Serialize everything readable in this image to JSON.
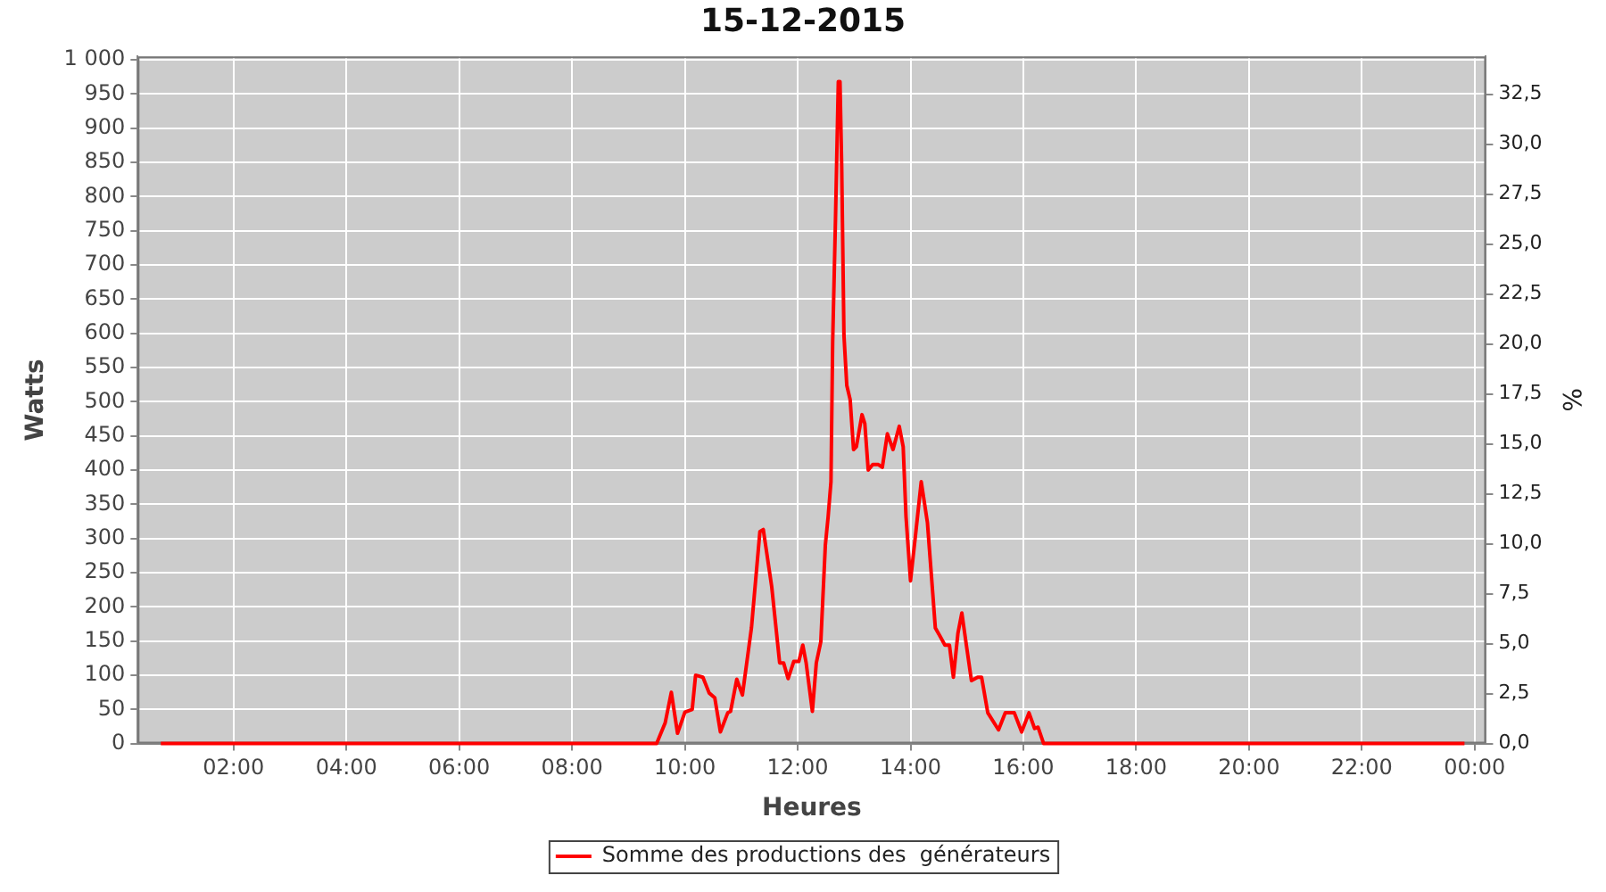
{
  "chart_data": {
    "type": "line",
    "title": "15-12-2015",
    "xlabel": "Heures",
    "ylabel": "Watts",
    "y2label": "%",
    "x": [
      0.71,
      9.5,
      9.65,
      9.76,
      9.87,
      10.0,
      10.13,
      10.19,
      10.32,
      10.43,
      10.53,
      10.63,
      10.76,
      10.81,
      10.92,
      11.02,
      11.18,
      11.33,
      11.39,
      11.54,
      11.68,
      11.75,
      11.83,
      11.93,
      12.02,
      12.09,
      12.15,
      12.26,
      12.33,
      12.41,
      12.49,
      12.54,
      12.59,
      12.62,
      12.67,
      12.72,
      12.75,
      12.78,
      12.82,
      12.87,
      12.93,
      12.99,
      13.04,
      13.14,
      13.19,
      13.25,
      13.33,
      13.43,
      13.5,
      13.59,
      13.69,
      13.8,
      13.87,
      13.92,
      14.0,
      14.09,
      14.19,
      14.3,
      14.37,
      14.44,
      14.53,
      14.61,
      14.69,
      14.76,
      14.84,
      14.91,
      14.99,
      15.08,
      15.19,
      15.26,
      15.37,
      15.56,
      15.68,
      15.84,
      15.97,
      16.1,
      16.2,
      16.26,
      16.36,
      23.82
    ],
    "series": [
      {
        "name": "Somme des productions des  générateurs",
        "color": "#ff0000",
        "values": [
          0,
          0,
          30,
          75,
          15,
          46,
          50,
          100,
          97,
          74,
          67,
          17,
          45,
          47,
          94,
          71,
          169,
          310,
          313,
          229,
          118,
          118,
          95,
          120,
          120,
          144,
          118,
          47,
          118,
          149,
          290,
          332,
          383,
          588,
          767,
          968,
          968,
          844,
          597,
          524,
          503,
          430,
          434,
          481,
          468,
          400,
          408,
          408,
          404,
          453,
          430,
          464,
          434,
          332,
          238,
          306,
          383,
          323,
          246,
          169,
          156,
          144,
          144,
          97,
          161,
          191,
          144,
          92,
          97,
          97,
          45,
          20,
          45,
          45,
          17,
          45,
          22,
          24,
          0,
          0
        ]
      }
    ],
    "xlim": [
      0.3,
      24.2
    ],
    "xticks": [
      {
        "value": 2,
        "label": "02:00"
      },
      {
        "value": 4,
        "label": "04:00"
      },
      {
        "value": 6,
        "label": "06:00"
      },
      {
        "value": 8,
        "label": "08:00"
      },
      {
        "value": 10,
        "label": "10:00"
      },
      {
        "value": 12,
        "label": "12:00"
      },
      {
        "value": 14,
        "label": "14:00"
      },
      {
        "value": 16,
        "label": "16:00"
      },
      {
        "value": 18,
        "label": "18:00"
      },
      {
        "value": 20,
        "label": "20:00"
      },
      {
        "value": 22,
        "label": "22:00"
      },
      {
        "value": 24,
        "label": "00:00"
      }
    ],
    "ylim": [
      0,
      1005
    ],
    "yticks": [
      0,
      50,
      100,
      150,
      200,
      250,
      300,
      350,
      400,
      450,
      500,
      550,
      600,
      650,
      700,
      750,
      800,
      850,
      900,
      950,
      {
        "value": 1000,
        "label": "1 000"
      }
    ],
    "y2lim": [
      0,
      34.4
    ],
    "y2ticks": [
      {
        "value": 0,
        "label": "0,0"
      },
      {
        "value": 2.5,
        "label": "2,5"
      },
      {
        "value": 5,
        "label": "5,0"
      },
      {
        "value": 7.5,
        "label": "7,5"
      },
      {
        "value": 10,
        "label": "10,0"
      },
      {
        "value": 12.5,
        "label": "12,5"
      },
      {
        "value": 15,
        "label": "15,0"
      },
      {
        "value": 17.5,
        "label": "17,5"
      },
      {
        "value": 20,
        "label": "20,0"
      },
      {
        "value": 22.5,
        "label": "22,5"
      },
      {
        "value": 25,
        "label": "25,0"
      },
      {
        "value": 27.5,
        "label": "27,5"
      },
      {
        "value": 30,
        "label": "30,0"
      },
      {
        "value": 32.5,
        "label": "32,5"
      }
    ],
    "grid": true,
    "legend": "bottom",
    "marker": "none",
    "line_style": "solid"
  }
}
